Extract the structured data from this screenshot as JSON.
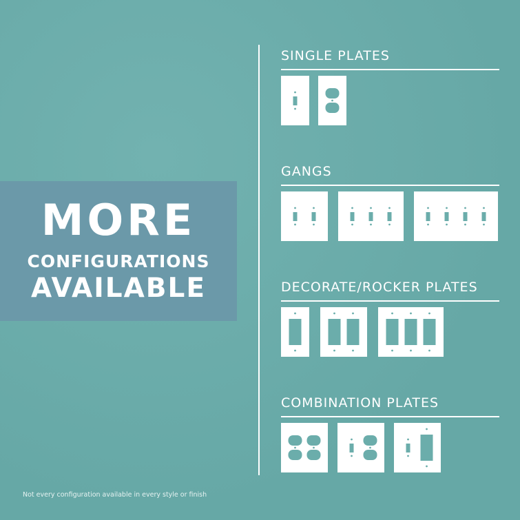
{
  "promo": {
    "line1": "MORE",
    "line2": "CONFIGURATIONS",
    "line3": "AVAILABLE"
  },
  "sections": [
    {
      "title": "SINGLE PLATES",
      "plates": [
        [
          "toggle"
        ],
        [
          "duplex"
        ]
      ]
    },
    {
      "title": "GANGS",
      "plates": [
        [
          "toggle",
          "toggle"
        ],
        [
          "toggle",
          "toggle",
          "toggle"
        ],
        [
          "toggle",
          "toggle",
          "toggle",
          "toggle"
        ]
      ]
    },
    {
      "title": "DECORATE/ROCKER PLATES",
      "plates": [
        [
          "rocker"
        ],
        [
          "rocker",
          "rocker"
        ],
        [
          "rocker",
          "rocker",
          "rocker"
        ]
      ]
    },
    {
      "title": "COMBINATION PLATES",
      "plates": [
        [
          "duplex",
          "duplex"
        ],
        [
          "toggle",
          "duplex"
        ],
        [
          "toggle",
          "rocker"
        ]
      ]
    }
  ],
  "footnote": "Not every configuration available in every style or finish",
  "colors": {
    "background": "#6badab",
    "promo_box": "#6b99a9",
    "plate": "#ffffff"
  }
}
